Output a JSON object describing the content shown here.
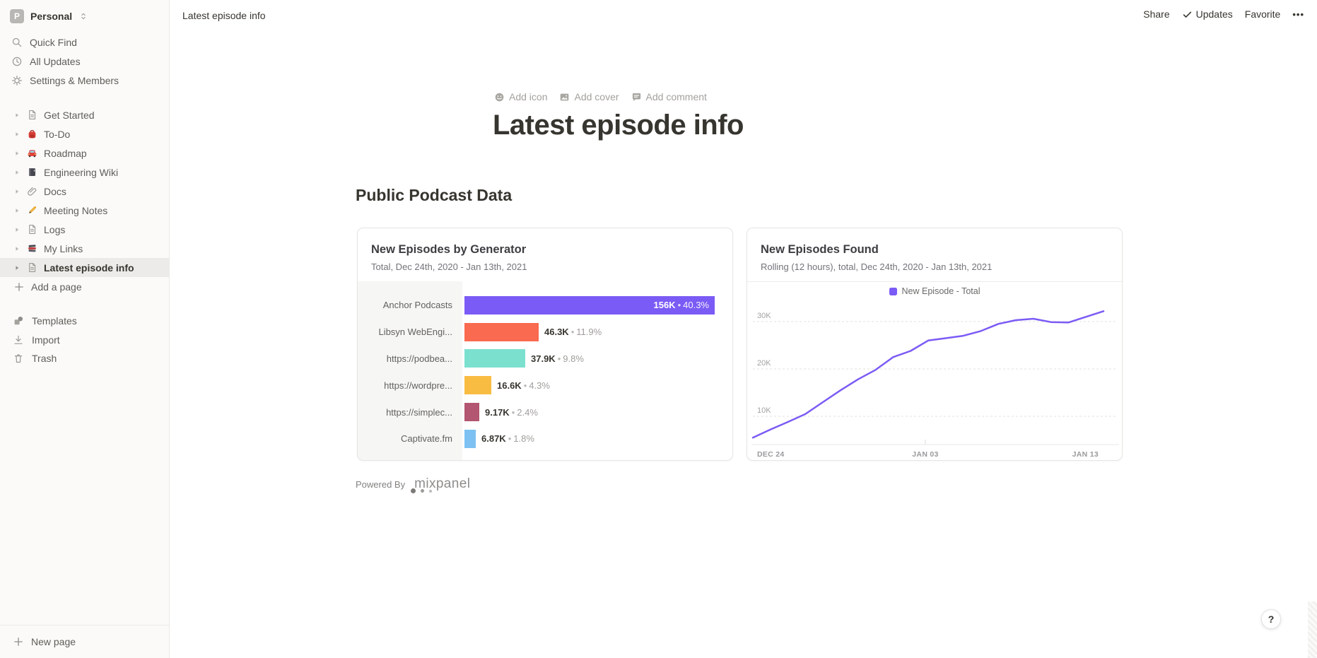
{
  "topbar": {
    "breadcrumb": "Latest episode info",
    "share": "Share",
    "updates": "Updates",
    "favorite": "Favorite",
    "more": "•••"
  },
  "sidebar": {
    "workspace": {
      "initial": "P",
      "name": "Personal"
    },
    "menu": [
      {
        "icon": "search-icon",
        "label": "Quick Find"
      },
      {
        "icon": "clock-icon",
        "label": "All Updates"
      },
      {
        "icon": "gear-icon",
        "label": "Settings & Members"
      }
    ],
    "pages": [
      {
        "icon": "page-icon",
        "label": "Get Started",
        "selected": false
      },
      {
        "icon": "backpack-icon",
        "label": "To-Do",
        "selected": false
      },
      {
        "icon": "car-icon",
        "label": "Roadmap",
        "selected": false
      },
      {
        "icon": "notebook-icon",
        "label": "Engineering Wiki",
        "selected": false
      },
      {
        "icon": "paperclip-icon",
        "label": "Docs",
        "selected": false
      },
      {
        "icon": "pencil-icon",
        "label": "Meeting Notes",
        "selected": false
      },
      {
        "icon": "page-icon",
        "label": "Logs",
        "selected": false
      },
      {
        "icon": "books-icon",
        "label": "My Links",
        "selected": false
      },
      {
        "icon": "page-icon",
        "label": "Latest episode info",
        "selected": true
      }
    ],
    "add_page": "Add a page",
    "library": [
      {
        "icon": "templates-icon",
        "label": "Templates"
      },
      {
        "icon": "import-icon",
        "label": "Import"
      },
      {
        "icon": "trash-icon",
        "label": "Trash"
      }
    ],
    "new_page": "New page"
  },
  "page": {
    "actions": [
      {
        "icon": "emoji-face-icon",
        "label": "Add icon"
      },
      {
        "icon": "image-icon",
        "label": "Add cover"
      },
      {
        "icon": "comment-icon",
        "label": "Add comment"
      }
    ],
    "title": "Latest episode info",
    "section_heading": "Public Podcast Data",
    "powered_by": "Powered By",
    "brand": "mixpanel",
    "carousel": {
      "dots": 3,
      "active_dot": 0
    }
  },
  "chart_data": [
    {
      "type": "bar",
      "orientation": "horizontal",
      "title": "New Episodes by Generator",
      "subtitle": "Total, Dec 24th, 2020 - Jan 13th, 2021",
      "categories": [
        "Anchor Podcasts",
        "Libsyn WebEngi...",
        "https://podbea...",
        "https://wordpre...",
        "https://simplec...",
        "Captivate.fm"
      ],
      "values": [
        156000,
        46300,
        37900,
        16600,
        9170,
        6870
      ],
      "value_labels": [
        "156K",
        "46.3K",
        "37.9K",
        "16.6K",
        "9.17K",
        "6.87K"
      ],
      "pct_labels": [
        "40.3%",
        "11.9%",
        "9.8%",
        "4.3%",
        "2.4%",
        "1.8%"
      ],
      "colors": [
        "#7B5BF5",
        "#F96A50",
        "#7CE0CF",
        "#F9BC42",
        "#B25671",
        "#7DC1F2"
      ],
      "xlim": [
        0,
        160000
      ]
    },
    {
      "type": "line",
      "title": "New Episodes Found",
      "subtitle": "Rolling (12 hours), total, Dec 24th, 2020 - Jan 13th, 2021",
      "legend": "New Episode - Total",
      "legend_position": "top center",
      "line_color": "#7B5BF5",
      "grid": "dashed horizontal",
      "x_dates": [
        "Dec 24",
        "Dec 25",
        "Dec 26",
        "Dec 27",
        "Dec 28",
        "Dec 29",
        "Dec 30",
        "Dec 31",
        "Jan 01",
        "Jan 02",
        "Jan 03",
        "Jan 04",
        "Jan 05",
        "Jan 06",
        "Jan 07",
        "Jan 08",
        "Jan 09",
        "Jan 10",
        "Jan 11",
        "Jan 12",
        "Jan 13"
      ],
      "values": [
        5500,
        7200,
        8800,
        10500,
        13000,
        15500,
        17800,
        19800,
        22500,
        23800,
        26000,
        26500,
        27000,
        28000,
        29500,
        30300,
        30600,
        29900,
        29800,
        31000,
        32200
      ],
      "yticks": [
        "10K",
        "20K",
        "30K"
      ],
      "ytick_values": [
        10000,
        20000,
        30000
      ],
      "xticks": [
        "DEC 24",
        "JAN 03",
        "JAN 13"
      ],
      "ylim": [
        4000,
        34000
      ]
    }
  ],
  "help_button": "?"
}
